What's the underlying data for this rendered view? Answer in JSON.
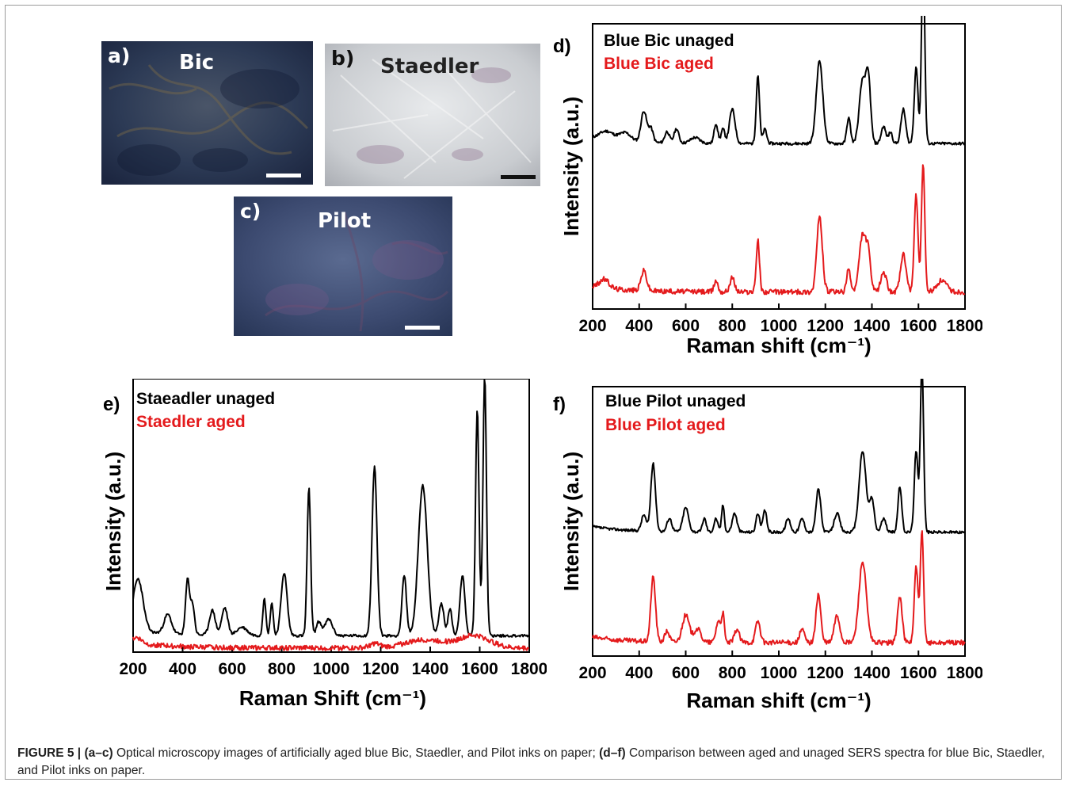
{
  "micrographs": [
    {
      "label": "a)",
      "name": "Bic"
    },
    {
      "label": "b)",
      "name": "Staedler"
    },
    {
      "label": "c)",
      "name": "Pilot"
    }
  ],
  "chart_data": [
    {
      "type": "line",
      "panel": "d)",
      "xlabel": "Raman shift (cm⁻¹)",
      "ylabel": "Intensity (a.u.)",
      "xlim": [
        200,
        1800
      ],
      "xticks": [
        200,
        400,
        600,
        800,
        1000,
        1200,
        1400,
        1600,
        1800
      ],
      "series": [
        {
          "name": "Blue Bic unaged",
          "color": "#000000",
          "baseline": 0.58,
          "peaks": [
            [
              260,
              0.03,
              30
            ],
            [
              340,
              0.03,
              25
            ],
            [
              420,
              0.11,
              12
            ],
            [
              450,
              0.05,
              10
            ],
            [
              520,
              0.04,
              10
            ],
            [
              560,
              0.05,
              10
            ],
            [
              640,
              0.02,
              20
            ],
            [
              730,
              0.07,
              8
            ],
            [
              760,
              0.05,
              8
            ],
            [
              800,
              0.12,
              12
            ],
            [
              910,
              0.24,
              7
            ],
            [
              940,
              0.05,
              8
            ],
            [
              1175,
              0.29,
              14
            ],
            [
              1300,
              0.09,
              8
            ],
            [
              1360,
              0.22,
              14
            ],
            [
              1385,
              0.21,
              10
            ],
            [
              1450,
              0.06,
              10
            ],
            [
              1480,
              0.04,
              8
            ],
            [
              1535,
              0.12,
              10
            ],
            [
              1590,
              0.27,
              8
            ],
            [
              1620,
              0.66,
              7
            ]
          ]
        },
        {
          "name": "Blue Bic aged",
          "color": "#e41a1c",
          "baseline": 0.06,
          "peaks": [
            [
              250,
              0.03,
              20
            ],
            [
              420,
              0.07,
              12
            ],
            [
              730,
              0.04,
              8
            ],
            [
              800,
              0.05,
              10
            ],
            [
              910,
              0.18,
              7
            ],
            [
              1175,
              0.26,
              12
            ],
            [
              1300,
              0.08,
              8
            ],
            [
              1360,
              0.2,
              14
            ],
            [
              1385,
              0.12,
              10
            ],
            [
              1450,
              0.07,
              12
            ],
            [
              1535,
              0.13,
              12
            ],
            [
              1590,
              0.34,
              8
            ],
            [
              1620,
              0.45,
              7
            ],
            [
              1700,
              0.04,
              20
            ]
          ]
        }
      ]
    },
    {
      "type": "line",
      "panel": "e)",
      "xlabel": "Raman Shift (cm⁻¹)",
      "ylabel": "Intensity (a.u.)",
      "xlim": [
        200,
        1800
      ],
      "xticks": [
        200,
        400,
        600,
        800,
        1000,
        1200,
        1400,
        1600,
        1800
      ],
      "series": [
        {
          "name": "Staeadler unaged",
          "color": "#000000",
          "baseline": 0.06,
          "peaks": [
            [
              220,
              0.19,
              20
            ],
            [
              340,
              0.07,
              15
            ],
            [
              420,
              0.2,
              8
            ],
            [
              440,
              0.11,
              8
            ],
            [
              520,
              0.09,
              12
            ],
            [
              570,
              0.1,
              12
            ],
            [
              640,
              0.03,
              20
            ],
            [
              730,
              0.14,
              6
            ],
            [
              760,
              0.12,
              6
            ],
            [
              810,
              0.23,
              12
            ],
            [
              910,
              0.54,
              7
            ],
            [
              950,
              0.05,
              10
            ],
            [
              990,
              0.06,
              15
            ],
            [
              1175,
              0.62,
              10
            ],
            [
              1295,
              0.22,
              9
            ],
            [
              1370,
              0.55,
              18
            ],
            [
              1445,
              0.12,
              10
            ],
            [
              1480,
              0.1,
              8
            ],
            [
              1530,
              0.22,
              10
            ],
            [
              1590,
              0.83,
              7
            ],
            [
              1620,
              0.95,
              7
            ]
          ]
        },
        {
          "name": "Staedler aged",
          "color": "#e41a1c",
          "baseline": 0.015,
          "peaks": [
            [
              215,
              0.02,
              20
            ],
            [
              1175,
              0.015,
              20
            ],
            [
              1380,
              0.03,
              80
            ],
            [
              1580,
              0.045,
              60
            ]
          ]
        }
      ]
    },
    {
      "type": "line",
      "panel": "f)",
      "xlabel": "Raman shift (cm⁻¹)",
      "ylabel": "Intensity (a.u.)",
      "xlim": [
        200,
        1800
      ],
      "xticks": [
        200,
        400,
        600,
        800,
        1000,
        1200,
        1400,
        1600,
        1800
      ],
      "series": [
        {
          "name": "Blue Pilot unaged",
          "color": "#000000",
          "baseline": 0.46,
          "peaks": [
            [
              420,
              0.06,
              10
            ],
            [
              460,
              0.25,
              10
            ],
            [
              530,
              0.05,
              10
            ],
            [
              600,
              0.09,
              12
            ],
            [
              680,
              0.05,
              8
            ],
            [
              730,
              0.05,
              8
            ],
            [
              760,
              0.1,
              6
            ],
            [
              810,
              0.07,
              10
            ],
            [
              910,
              0.07,
              8
            ],
            [
              940,
              0.08,
              8
            ],
            [
              1040,
              0.05,
              10
            ],
            [
              1100,
              0.05,
              10
            ],
            [
              1170,
              0.16,
              10
            ],
            [
              1250,
              0.07,
              12
            ],
            [
              1360,
              0.3,
              15
            ],
            [
              1400,
              0.12,
              10
            ],
            [
              1450,
              0.05,
              10
            ],
            [
              1520,
              0.17,
              8
            ],
            [
              1590,
              0.3,
              8
            ],
            [
              1615,
              0.63,
              7
            ]
          ]
        },
        {
          "name": "Blue Pilot aged",
          "color": "#e41a1c",
          "baseline": 0.05,
          "peaks": [
            [
              460,
              0.24,
              10
            ],
            [
              520,
              0.04,
              10
            ],
            [
              600,
              0.1,
              15
            ],
            [
              650,
              0.05,
              15
            ],
            [
              740,
              0.08,
              10
            ],
            [
              760,
              0.1,
              6
            ],
            [
              820,
              0.05,
              10
            ],
            [
              910,
              0.08,
              10
            ],
            [
              1100,
              0.05,
              10
            ],
            [
              1170,
              0.18,
              10
            ],
            [
              1250,
              0.1,
              12
            ],
            [
              1360,
              0.3,
              16
            ],
            [
              1520,
              0.17,
              10
            ],
            [
              1590,
              0.28,
              8
            ],
            [
              1615,
              0.41,
              7
            ]
          ]
        }
      ]
    }
  ],
  "caption": {
    "fig": "FIGURE 5 |",
    "part1_label": "(a–c)",
    "part1_text": " Optical microscopy images of artificially aged blue Bic, Staedler, and Pilot inks on paper; ",
    "part2_label": "(d–f)",
    "part2_text": " Comparison between aged and unaged SERS spectra for blue Bic, Staedler, and Pilot inks on paper."
  }
}
